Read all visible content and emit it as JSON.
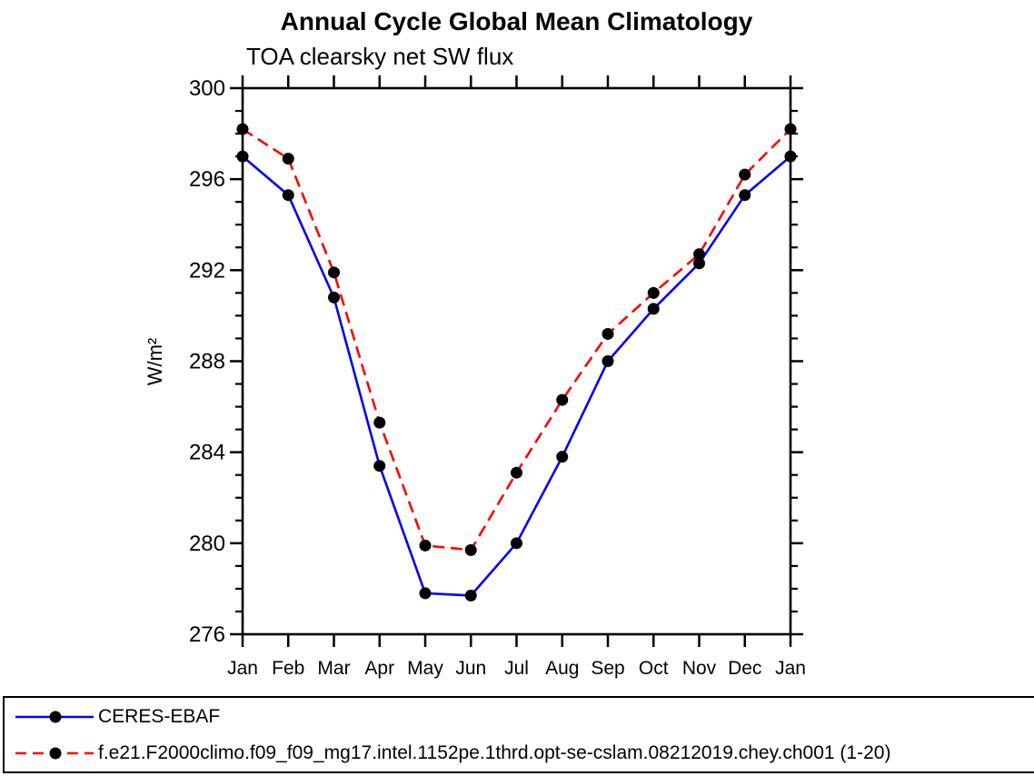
{
  "chart_data": {
    "type": "line",
    "title": "Annual Cycle Global Mean Climatology",
    "subtitle": "TOA clearsky net SW flux",
    "ylabel": "W/m²",
    "ylim": [
      276,
      300
    ],
    "y_major_ticks": [
      276,
      280,
      284,
      288,
      292,
      296,
      300
    ],
    "y_minor_step": 1,
    "categories": [
      "Jan",
      "Feb",
      "Mar",
      "Apr",
      "May",
      "Jun",
      "Jul",
      "Aug",
      "Sep",
      "Oct",
      "Nov",
      "Dec",
      "Jan"
    ],
    "grid": false,
    "legend_position": "bottom",
    "axis_color": "#000000",
    "marker_shape": "filled-circle",
    "series": [
      {
        "name": "CERES-EBAF",
        "color": "#0000ff",
        "line_style": "solid",
        "marker_color": "#000000",
        "values": [
          297.0,
          295.3,
          290.8,
          283.4,
          277.8,
          277.7,
          280.0,
          283.8,
          288.0,
          290.3,
          292.3,
          295.3,
          297.0
        ]
      },
      {
        "name": "f.e21.F2000climo.f09_f09_mg17.intel.1152pe.1thrd.opt-se-cslam.08212019.chey.ch001 (1-20)",
        "color": "#ff0000",
        "line_style": "dashed",
        "marker_color": "#000000",
        "values": [
          298.2,
          296.9,
          291.9,
          285.3,
          279.9,
          279.7,
          283.1,
          286.3,
          289.2,
          291.0,
          292.7,
          296.2,
          298.2
        ]
      }
    ]
  }
}
